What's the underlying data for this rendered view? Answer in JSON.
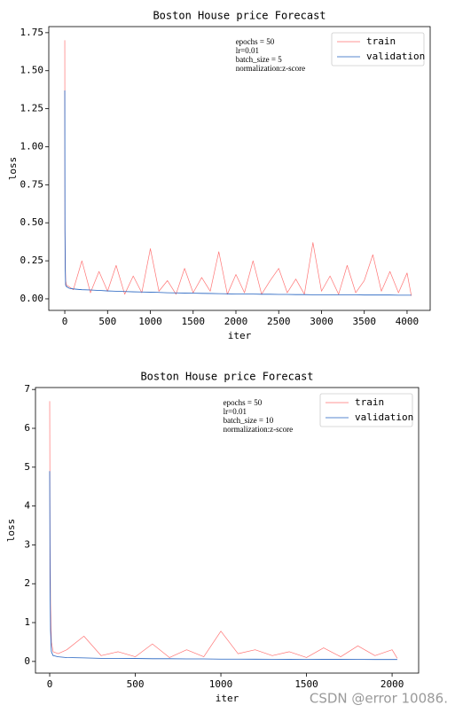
{
  "chart_data": [
    {
      "type": "line",
      "title": "Boston House price Forecast",
      "xlabel": "iter",
      "ylabel": "loss",
      "annotation": [
        "epochs = 50",
        "lr=0.01",
        "batch_size = 5",
        "normalization:z-score"
      ],
      "x": [
        0,
        2,
        5,
        10,
        20,
        50,
        100,
        200,
        300,
        400,
        500,
        600,
        700,
        800,
        900,
        1000,
        1100,
        1200,
        1300,
        1400,
        1500,
        1600,
        1700,
        1800,
        1900,
        2000,
        2100,
        2200,
        2300,
        2400,
        2500,
        2600,
        2700,
        2800,
        2900,
        3000,
        3100,
        3200,
        3300,
        3400,
        3500,
        3600,
        3700,
        3800,
        3900,
        4000,
        4050
      ],
      "series": [
        {
          "name": "train",
          "color": "#ff0000",
          "values": [
            1.7,
            0.45,
            0.28,
            0.12,
            0.09,
            0.08,
            0.06,
            0.25,
            0.04,
            0.18,
            0.05,
            0.22,
            0.03,
            0.15,
            0.04,
            0.33,
            0.05,
            0.12,
            0.03,
            0.2,
            0.04,
            0.14,
            0.05,
            0.31,
            0.03,
            0.16,
            0.04,
            0.25,
            0.03,
            0.12,
            0.2,
            0.04,
            0.13,
            0.03,
            0.37,
            0.05,
            0.15,
            0.03,
            0.22,
            0.04,
            0.12,
            0.29,
            0.05,
            0.18,
            0.04,
            0.17,
            0.02
          ]
        },
        {
          "name": "validation",
          "color": "#1f5fbf",
          "values": [
            1.37,
            0.45,
            0.2,
            0.09,
            0.08,
            0.07,
            0.065,
            0.06,
            0.058,
            0.055,
            0.052,
            0.05,
            0.048,
            0.046,
            0.045,
            0.044,
            0.042,
            0.04,
            0.039,
            0.038,
            0.037,
            0.036,
            0.035,
            0.034,
            0.033,
            0.032,
            0.031,
            0.031,
            0.03,
            0.03,
            0.029,
            0.029,
            0.028,
            0.028,
            0.027,
            0.027,
            0.027,
            0.026,
            0.026,
            0.026,
            0.025,
            0.025,
            0.025,
            0.025,
            0.024,
            0.024,
            0.024
          ]
        }
      ],
      "xlim": [
        -187,
        4270
      ],
      "ylim": [
        -0.076,
        1.79
      ],
      "xticks": [
        0,
        500,
        1000,
        1500,
        2000,
        2500,
        3000,
        3500,
        4000
      ],
      "yticks": [
        {
          "value": 0,
          "label": "0.00"
        },
        {
          "value": 0.25,
          "label": "0.25"
        },
        {
          "value": 0.5,
          "label": "0.50"
        },
        {
          "value": 0.75,
          "label": "0.75"
        },
        {
          "value": 1,
          "label": "1.00"
        },
        {
          "value": 1.25,
          "label": "1.25"
        },
        {
          "value": 1.5,
          "label": "1.50"
        },
        {
          "value": 1.75,
          "label": "1.75"
        }
      ],
      "legend": "upper right"
    },
    {
      "type": "line",
      "title": "Boston House price Forecast",
      "xlabel": "iter",
      "ylabel": "loss",
      "annotation": [
        "epochs = 50",
        "lr=0.01",
        "batch_size = 10",
        "normalization:z-score"
      ],
      "x": [
        0,
        2,
        5,
        10,
        20,
        50,
        100,
        200,
        300,
        400,
        500,
        600,
        700,
        800,
        900,
        1000,
        1100,
        1200,
        1300,
        1400,
        1500,
        1600,
        1700,
        1800,
        1900,
        2000,
        2030
      ],
      "series": [
        {
          "name": "train",
          "color": "#ff0000",
          "values": [
            6.7,
            3.0,
            1.5,
            0.5,
            0.25,
            0.2,
            0.3,
            0.65,
            0.15,
            0.25,
            0.12,
            0.45,
            0.1,
            0.3,
            0.12,
            0.78,
            0.2,
            0.3,
            0.15,
            0.25,
            0.1,
            0.35,
            0.12,
            0.4,
            0.15,
            0.3,
            0.08
          ]
        },
        {
          "name": "validation",
          "color": "#1f5fbf",
          "values": [
            4.9,
            2.0,
            0.8,
            0.25,
            0.15,
            0.12,
            0.1,
            0.09,
            0.08,
            0.08,
            0.075,
            0.07,
            0.07,
            0.065,
            0.065,
            0.06,
            0.06,
            0.058,
            0.056,
            0.055,
            0.054,
            0.053,
            0.052,
            0.051,
            0.05,
            0.05,
            0.05
          ]
        }
      ],
      "xlim": [
        -83,
        2155
      ],
      "ylim": [
        -0.3,
        7.05
      ],
      "xticks": [
        0,
        500,
        1000,
        1500,
        2000
      ],
      "yticks": [
        0,
        1,
        2,
        3,
        4,
        5,
        6,
        7
      ],
      "legend": "upper right"
    }
  ],
  "watermark": "CSDN @error 10086."
}
